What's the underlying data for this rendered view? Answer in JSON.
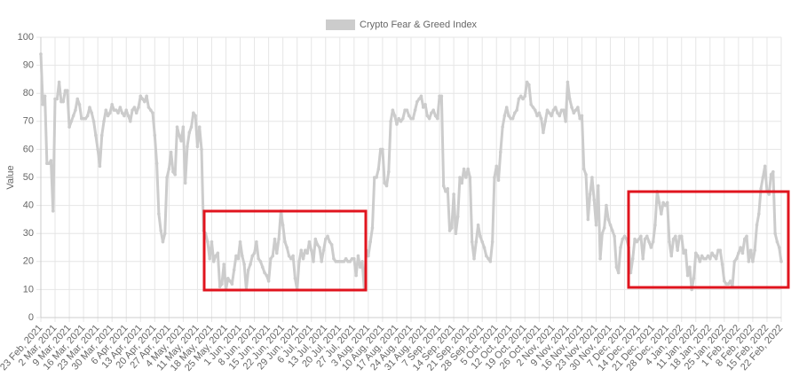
{
  "chart_data": {
    "type": "line",
    "y_label": "Value",
    "ylim": [
      0,
      100
    ],
    "yticks": [
      0,
      10,
      20,
      30,
      40,
      50,
      60,
      70,
      80,
      90,
      100
    ],
    "grid": true,
    "legend": "top",
    "categories": [
      "23 Feb, 2021",
      null,
      null,
      null,
      null,
      null,
      null,
      "2 Mar, 2021",
      null,
      null,
      null,
      null,
      null,
      null,
      "9 Mar, 2021",
      null,
      null,
      null,
      null,
      null,
      null,
      "16 Mar, 2021",
      null,
      null,
      null,
      null,
      null,
      null,
      "23 Mar, 2021",
      null,
      null,
      null,
      null,
      null,
      null,
      "30 Mar, 2021",
      null,
      null,
      null,
      null,
      null,
      null,
      "6 Apr, 2021",
      null,
      null,
      null,
      null,
      null,
      null,
      "13 Apr, 2021",
      null,
      null,
      null,
      null,
      null,
      null,
      "20 Apr, 2021",
      null,
      null,
      null,
      null,
      null,
      null,
      "27 Apr, 2021",
      null,
      null,
      null,
      null,
      null,
      null,
      "4 May, 2021",
      null,
      null,
      null,
      null,
      null,
      null,
      "11 May, 2021",
      null,
      null,
      null,
      null,
      null,
      null,
      "18 May, 2021",
      null,
      null,
      null,
      null,
      null,
      null,
      "25 May, 2021",
      null,
      null,
      null,
      null,
      null,
      null,
      "1 Jun, 2021",
      null,
      null,
      null,
      null,
      null,
      null,
      "8 Jun, 2021",
      null,
      null,
      null,
      null,
      null,
      null,
      "15 Jun, 2021",
      null,
      null,
      null,
      null,
      null,
      null,
      "22 Jun, 2021",
      null,
      null,
      null,
      null,
      null,
      null,
      "29 Jun, 2021",
      null,
      null,
      null,
      null,
      null,
      null,
      "6 Jul, 2021",
      null,
      null,
      null,
      null,
      null,
      null,
      "13 Jul, 2021",
      null,
      null,
      null,
      null,
      null,
      null,
      "20 Jul, 2021",
      null,
      null,
      null,
      null,
      null,
      null,
      "27 Jul, 2021",
      null,
      null,
      null,
      null,
      null,
      null,
      "3 Aug, 2021",
      null,
      null,
      null,
      null,
      null,
      null,
      "10 Aug, 2021",
      null,
      null,
      null,
      null,
      null,
      null,
      "17 Aug, 2021",
      null,
      null,
      null,
      null,
      null,
      null,
      "24 Aug, 2021",
      null,
      null,
      null,
      null,
      null,
      null,
      "31 Aug, 2021",
      null,
      null,
      null,
      null,
      null,
      null,
      "7 Sep, 2021",
      null,
      null,
      null,
      null,
      null,
      null,
      "14 Sep, 2021",
      null,
      null,
      null,
      null,
      null,
      null,
      "21 Sep, 2021",
      null,
      null,
      null,
      null,
      null,
      null,
      "28 Sep, 2021",
      null,
      null,
      null,
      null,
      null,
      null,
      "5 Oct, 2021",
      null,
      null,
      null,
      null,
      null,
      null,
      "12 Oct, 2021",
      null,
      null,
      null,
      null,
      null,
      null,
      "19 Oct, 2021",
      null,
      null,
      null,
      null,
      null,
      null,
      "26 Oct, 2021",
      null,
      null,
      null,
      null,
      null,
      null,
      "2 Nov, 2021",
      null,
      null,
      null,
      null,
      null,
      null,
      "9 Nov, 2021",
      null,
      null,
      null,
      null,
      null,
      null,
      "16 Nov, 2021",
      null,
      null,
      null,
      null,
      null,
      null,
      "23 Nov, 2021",
      null,
      null,
      null,
      null,
      null,
      null,
      "30 Nov, 2021",
      null,
      null,
      null,
      null,
      null,
      null,
      "7 Dec, 2021",
      null,
      null,
      null,
      null,
      null,
      null,
      "14 Dec, 2021",
      null,
      null,
      null,
      null,
      null,
      null,
      "21 Dec, 2021",
      null,
      null,
      null,
      null,
      null,
      null,
      "28 Dec, 2021",
      null,
      null,
      null,
      null,
      null,
      null,
      "4 Jan, 2022",
      null,
      null,
      null,
      null,
      null,
      null,
      "11 Jan, 2022",
      null,
      null,
      null,
      null,
      null,
      null,
      "18 Jan, 2022",
      null,
      null,
      null,
      null,
      null,
      null,
      "25 Jan, 2022",
      null,
      null,
      null,
      null,
      null,
      null,
      "1 Feb, 2022",
      null,
      null,
      null,
      null,
      null,
      null,
      "8 Feb, 2022",
      null,
      null,
      null,
      null,
      null,
      null,
      "15 Feb, 2022",
      null,
      null,
      null,
      null,
      null,
      null,
      "22 Feb, 2022"
    ],
    "series": [
      {
        "name": "Crypto Fear & Greed Index",
        "color": "#cccccc",
        "values": [
          94,
          76,
          79,
          55,
          55,
          56,
          38,
          78,
          78,
          84,
          77,
          77,
          81,
          81,
          68,
          70,
          72,
          74,
          78,
          76,
          71,
          71,
          71,
          72,
          75,
          73,
          70,
          65,
          60,
          54,
          65,
          70,
          74,
          72,
          73,
          76,
          74,
          74,
          73,
          75,
          73,
          72,
          74,
          72,
          70,
          74,
          75,
          73,
          75,
          79,
          78,
          77,
          79,
          75,
          74,
          73,
          65,
          55,
          37,
          31,
          27,
          30,
          50,
          53,
          59,
          52,
          51,
          68,
          65,
          63,
          68,
          48,
          61,
          66,
          68,
          73,
          72,
          61,
          68,
          60,
          31,
          30,
          27,
          21,
          27,
          20,
          22,
          23,
          11,
          12,
          19,
          10,
          14,
          13,
          12,
          17,
          22,
          21,
          27,
          22,
          19,
          10,
          17,
          19,
          22,
          23,
          27,
          21,
          20,
          18,
          16,
          15,
          13,
          21,
          22,
          28,
          23,
          28,
          38,
          33,
          27,
          25,
          22,
          21,
          22,
          14,
          10,
          20,
          24,
          21,
          24,
          23,
          27,
          24,
          20,
          28,
          26,
          25,
          20,
          24,
          28,
          29,
          27,
          26,
          21,
          20,
          20,
          20,
          20,
          20,
          21,
          20,
          20,
          21,
          21,
          15,
          22,
          18,
          20,
          10,
          24,
          22,
          27,
          32,
          50,
          50,
          53,
          60,
          60,
          48,
          47,
          52,
          70,
          74,
          72,
          69,
          71,
          70,
          71,
          74,
          74,
          72,
          71,
          71,
          74,
          77,
          78,
          79,
          75,
          76,
          72,
          71,
          73,
          74,
          72,
          71,
          79,
          79,
          47,
          45,
          46,
          31,
          32,
          44,
          30,
          36,
          50,
          48,
          53,
          50,
          53,
          50,
          27,
          21,
          27,
          33,
          29,
          27,
          25,
          22,
          21,
          20,
          27,
          50,
          54,
          49,
          59,
          68,
          72,
          75,
          72,
          71,
          71,
          73,
          74,
          78,
          79,
          78,
          79,
          84,
          83,
          76,
          75,
          74,
          72,
          73,
          71,
          66,
          70,
          74,
          73,
          72,
          74,
          75,
          73,
          72,
          74,
          74,
          70,
          84,
          78,
          75,
          73,
          74,
          75,
          71,
          72,
          53,
          51,
          35,
          44,
          50,
          42,
          33,
          47,
          21,
          30,
          32,
          40,
          35,
          33,
          31,
          29,
          18,
          16,
          25,
          28,
          29,
          28,
          25,
          16,
          21,
          28,
          27,
          28,
          29,
          21,
          28,
          29,
          27,
          25,
          27,
          33,
          45,
          41,
          37,
          41,
          40,
          41,
          27,
          22,
          28,
          29,
          24,
          29,
          29,
          23,
          24,
          15,
          18,
          10,
          14,
          23,
          22,
          20,
          22,
          21,
          21,
          22,
          21,
          23,
          22,
          21,
          24,
          24,
          19,
          13,
          12,
          12,
          13,
          11,
          20,
          21,
          23,
          25,
          23,
          28,
          29,
          20,
          24,
          20,
          24,
          33,
          37,
          46,
          50,
          54,
          45,
          44,
          51,
          52,
          30,
          27,
          25,
          20
        ]
      }
    ]
  }
}
